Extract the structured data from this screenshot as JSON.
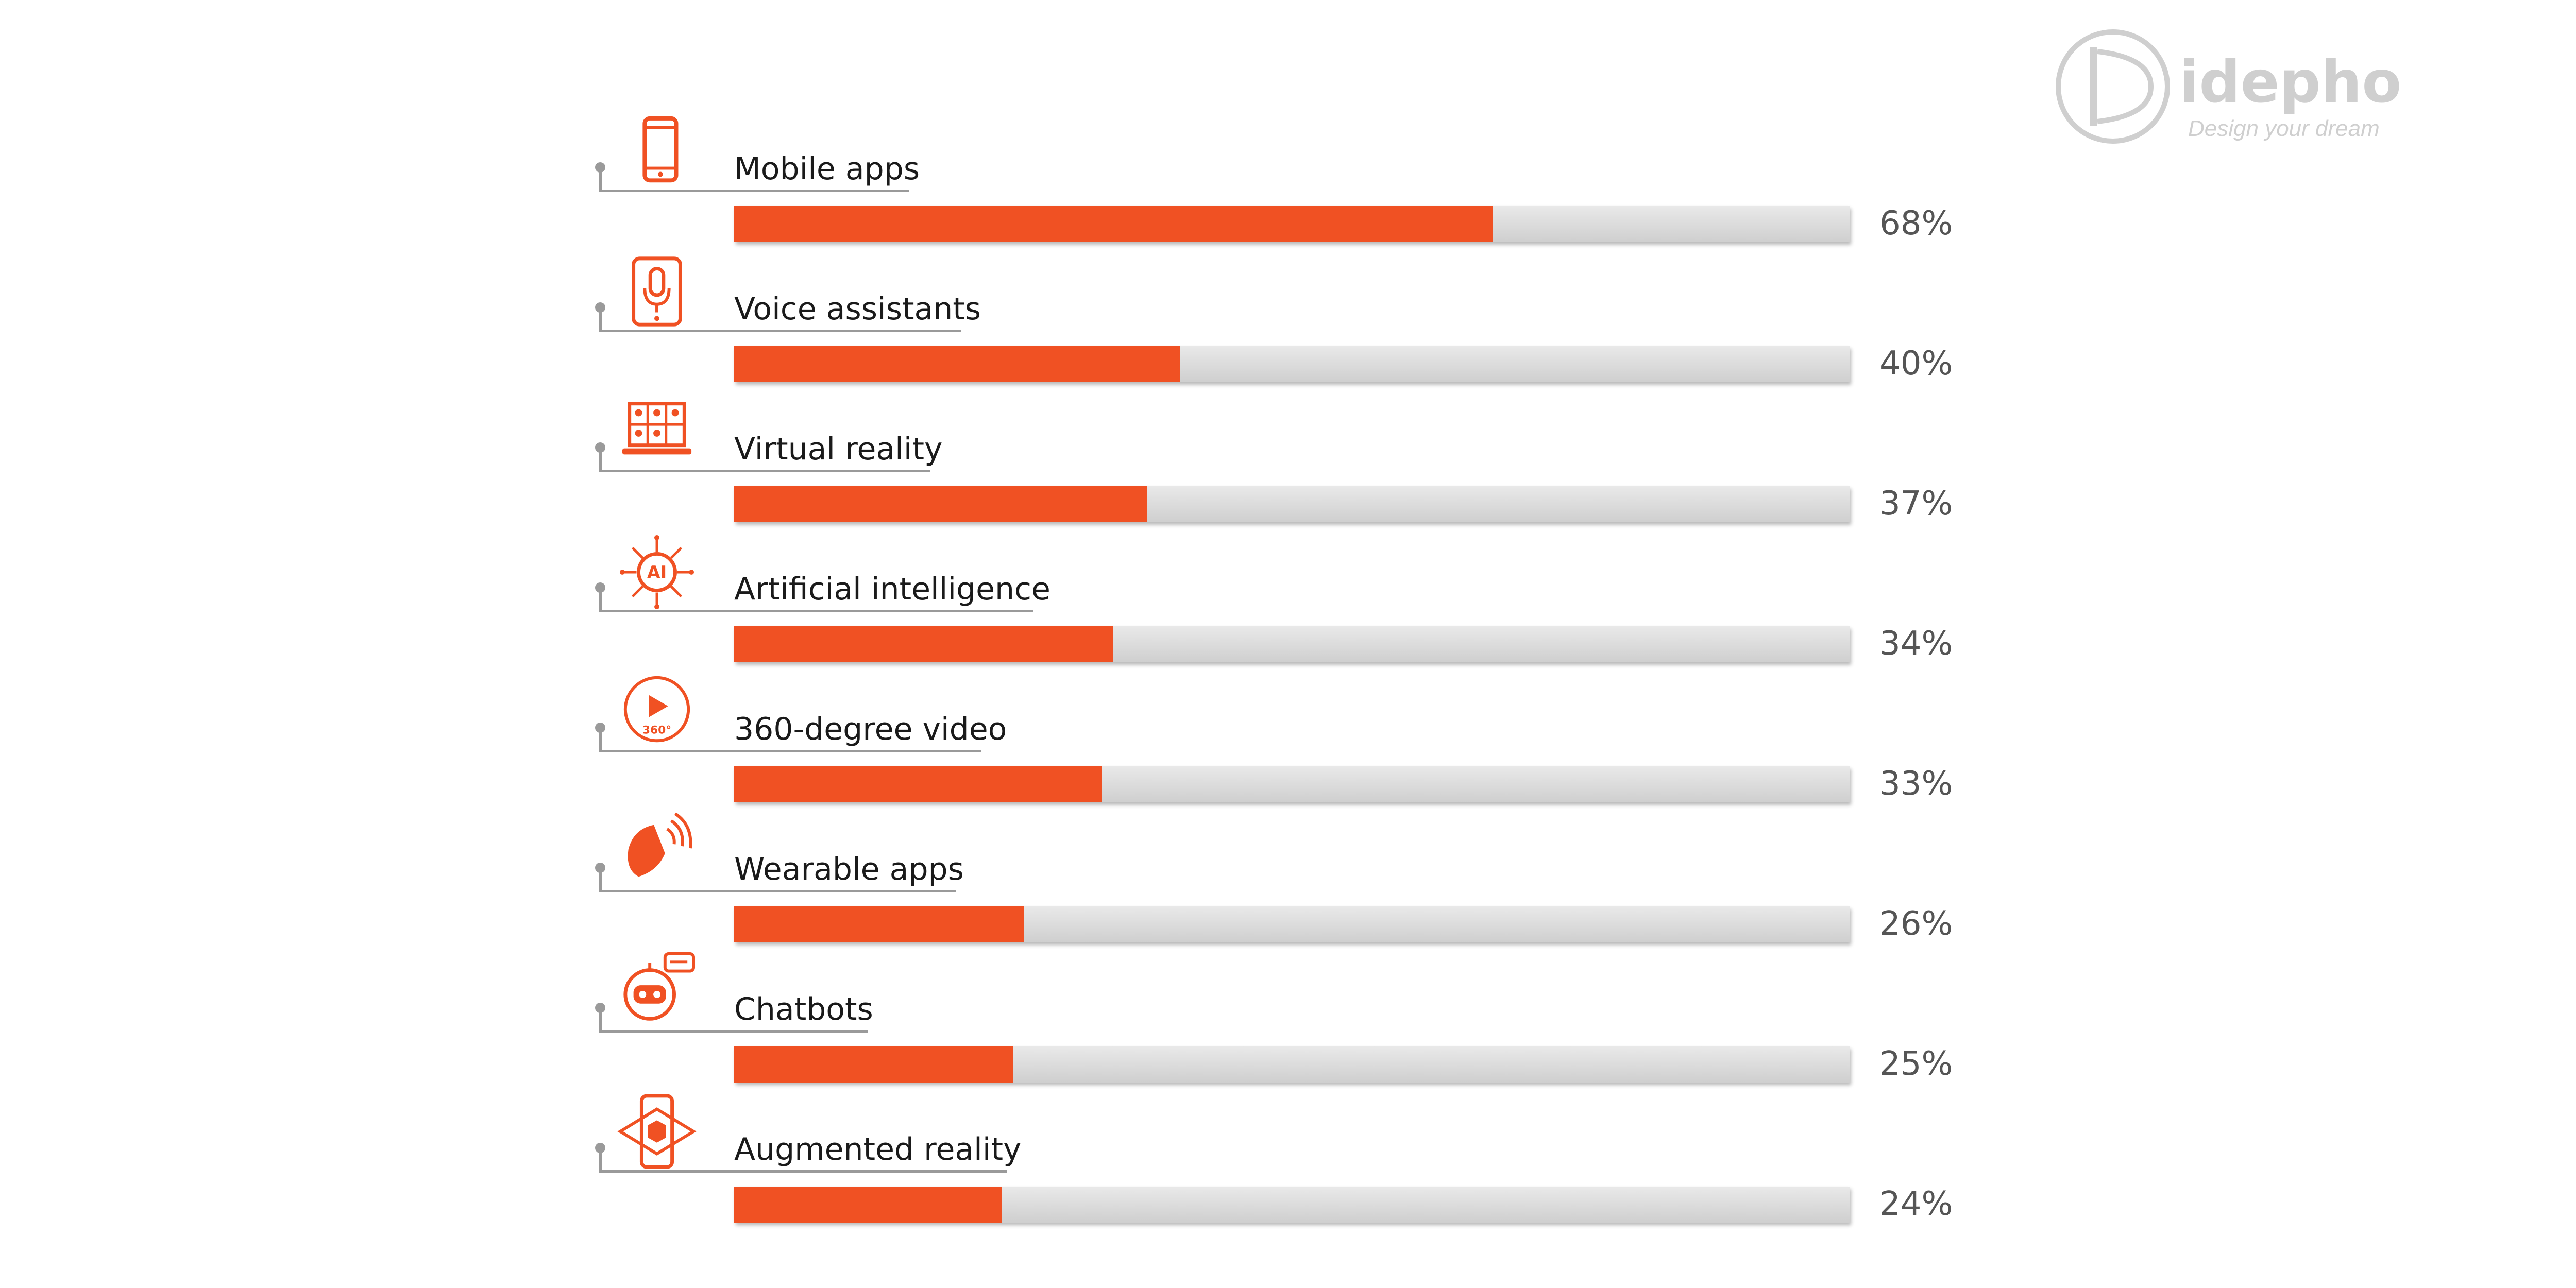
{
  "brand": {
    "name": "idepho",
    "tagline": "Design your dream"
  },
  "colors": {
    "accent": "#f05123",
    "track": "#dcdcdc",
    "text": "#1a1a1a",
    "percent": "#555555",
    "leader": "#9a9a9a",
    "logo": "#cfcfcf"
  },
  "chart_data": {
    "type": "bar",
    "orientation": "horizontal",
    "title": "",
    "xlabel": "",
    "ylabel": "",
    "xlim": [
      0,
      100
    ],
    "grid": false,
    "categories": [
      "Mobile apps",
      "Voice assistants",
      "Virtual reality",
      "Artificial intelligence",
      "360-degree video",
      "Wearable apps",
      "Chatbots",
      "Augmented reality"
    ],
    "values": [
      68,
      40,
      37,
      34,
      33,
      26,
      25,
      24
    ],
    "value_labels": [
      "68%",
      "40%",
      "37%",
      "34%",
      "33%",
      "26%",
      "25%",
      "24%"
    ],
    "icons": [
      "smartphone-icon",
      "voice-assistant-phone-icon",
      "virtual-reality-laptop-icon",
      "artificial-intelligence-icon",
      "360-video-icon",
      "wearable-watch-icon",
      "chatbot-icon",
      "augmented-reality-icon"
    ],
    "icon_texts": [
      "",
      "",
      "",
      "AI",
      "360°",
      "",
      "",
      ""
    ]
  }
}
